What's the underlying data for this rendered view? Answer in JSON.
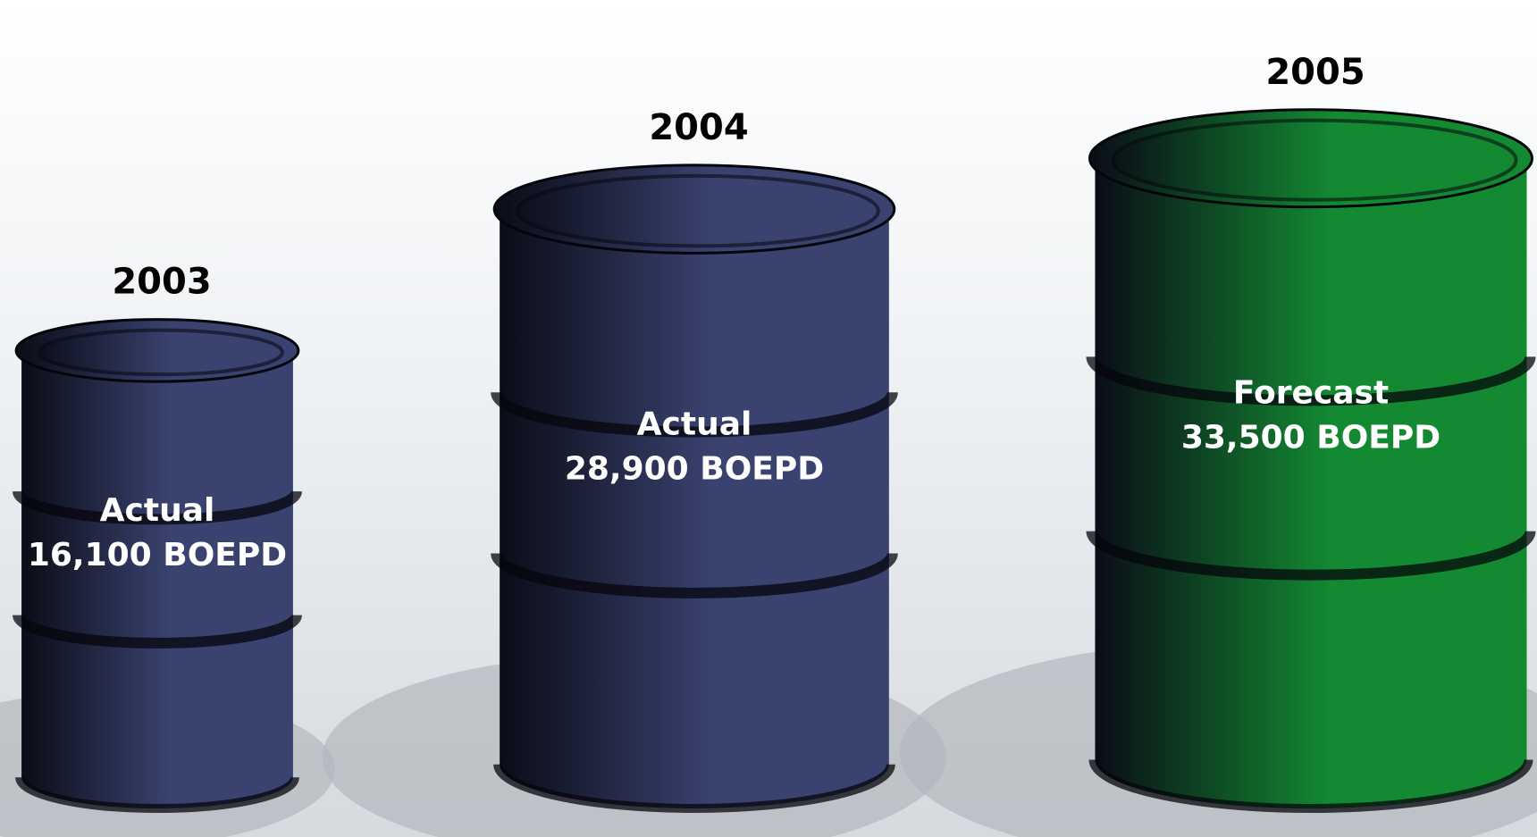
{
  "chart_data": {
    "type": "barrel",
    "categories": [
      "2003",
      "2004",
      "2005"
    ],
    "values": [
      16100,
      28900,
      33500
    ],
    "value_labels": [
      "16,100 BOEPD",
      "28,900 BOEPD",
      "33,500 BOEPD"
    ],
    "status": [
      "Actual",
      "Actual",
      "Forecast"
    ],
    "colors": [
      "#3a4270",
      "#3a4270",
      "#138a32"
    ]
  }
}
